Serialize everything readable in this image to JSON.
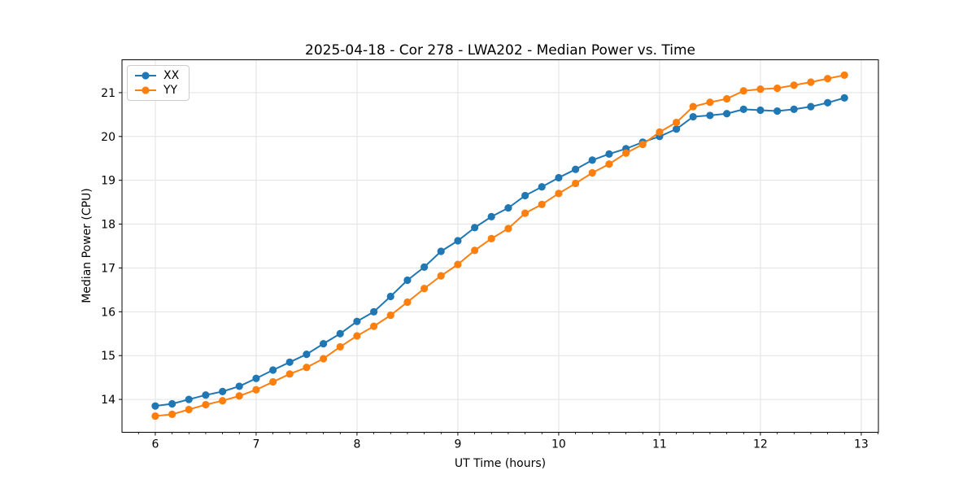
{
  "figure": {
    "background": "#ffffff",
    "title": "2025-04-18 - Cor 278 - LWA202 - Median Power vs. Time"
  },
  "chart_data": {
    "type": "line",
    "title": "2025-04-18 - Cor 278 - LWA202 - Median Power vs. Time",
    "xlabel": "UT Time (hours)",
    "ylabel": "Median Power (CPU)",
    "xlim": [
      5.67,
      13.17
    ],
    "ylim": [
      13.25,
      21.75
    ],
    "xticks": [
      6,
      7,
      8,
      9,
      10,
      11,
      12,
      13
    ],
    "yticks": [
      14,
      15,
      16,
      17,
      18,
      19,
      20,
      21
    ],
    "x_minor_step": 0.16667,
    "grid": true,
    "grid_color": "#e2e2e2",
    "legend_position": "upper-left",
    "marker": "circle",
    "x": [
      6.0,
      6.167,
      6.333,
      6.5,
      6.667,
      6.833,
      7.0,
      7.167,
      7.333,
      7.5,
      7.667,
      7.833,
      8.0,
      8.167,
      8.333,
      8.5,
      8.667,
      8.833,
      9.0,
      9.167,
      9.333,
      9.5,
      9.667,
      9.833,
      10.0,
      10.167,
      10.333,
      10.5,
      10.667,
      10.833,
      11.0,
      11.167,
      11.333,
      11.5,
      11.667,
      11.833,
      12.0,
      12.167,
      12.333,
      12.5,
      12.667,
      12.833
    ],
    "series": [
      {
        "name": "XX",
        "color": "#1f77b4",
        "values": [
          13.85,
          13.9,
          14.0,
          14.1,
          14.18,
          14.3,
          14.48,
          14.67,
          14.85,
          15.03,
          15.27,
          15.5,
          15.78,
          16.0,
          16.35,
          16.72,
          17.02,
          17.38,
          17.62,
          17.92,
          18.17,
          18.37,
          18.65,
          18.85,
          19.06,
          19.25,
          19.46,
          19.6,
          19.72,
          19.87,
          20.0,
          20.17,
          20.45,
          20.48,
          20.52,
          20.62,
          20.6,
          20.58,
          20.62,
          20.68,
          20.77,
          20.88
        ]
      },
      {
        "name": "YY",
        "color": "#ff7f0e",
        "values": [
          13.62,
          13.66,
          13.77,
          13.88,
          13.97,
          14.08,
          14.22,
          14.4,
          14.58,
          14.73,
          14.93,
          15.2,
          15.45,
          15.67,
          15.92,
          16.22,
          16.53,
          16.82,
          17.08,
          17.4,
          17.67,
          17.9,
          18.25,
          18.45,
          18.7,
          18.93,
          19.17,
          19.37,
          19.62,
          19.82,
          20.1,
          20.32,
          20.68,
          20.78,
          20.86,
          21.04,
          21.08,
          21.1,
          21.17,
          21.24,
          21.32,
          21.4
        ]
      }
    ]
  }
}
